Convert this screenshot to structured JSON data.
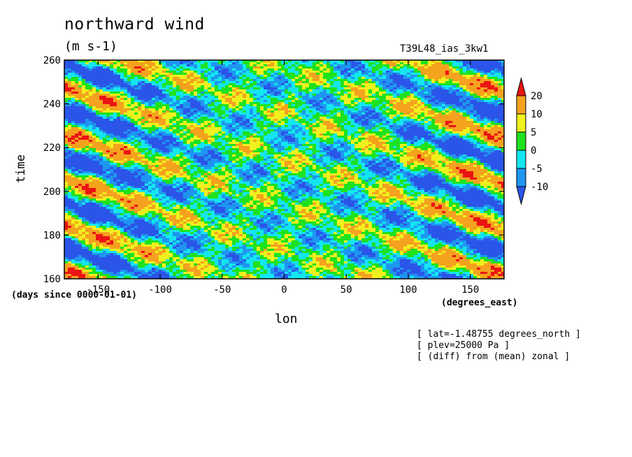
{
  "chart_data": {
    "type": "heatmap",
    "title": "northward wind",
    "units": "(m s-1)",
    "run_name": "T39L48_ias_3kw1",
    "xlabel": "lon",
    "ylabel": "time",
    "x_units": "(degrees_east)",
    "y_units": "(days since 0000-01-01)",
    "xlim": [
      -177.2,
      177.2
    ],
    "ylim": [
      160,
      260
    ],
    "x_ticks": [
      -150,
      -100,
      -50,
      0,
      50,
      100,
      150
    ],
    "y_ticks": [
      160,
      180,
      200,
      220,
      240,
      260
    ],
    "color_levels": [
      -10,
      -5,
      0,
      5,
      10,
      20
    ],
    "color_bins": [
      {
        "range": "< -10",
        "color": "#2b55e8"
      },
      {
        "range": "-10 to -5",
        "color": "#1e96f0"
      },
      {
        "range": "-5 to 0",
        "color": "#14e6f0"
      },
      {
        "range": "0 to 5",
        "color": "#1ee21e"
      },
      {
        "range": "5 to 10",
        "color": "#f0f01e"
      },
      {
        "range": "10 to 20",
        "color": "#f5a21e"
      },
      {
        "range": "> 20",
        "color": "#eb1414"
      }
    ],
    "notes": [
      "[ lat=-1.48755 degrees_north ]",
      "[ plev=25000 Pa ]",
      "[ (diff) from (mean) zonal ]"
    ]
  }
}
